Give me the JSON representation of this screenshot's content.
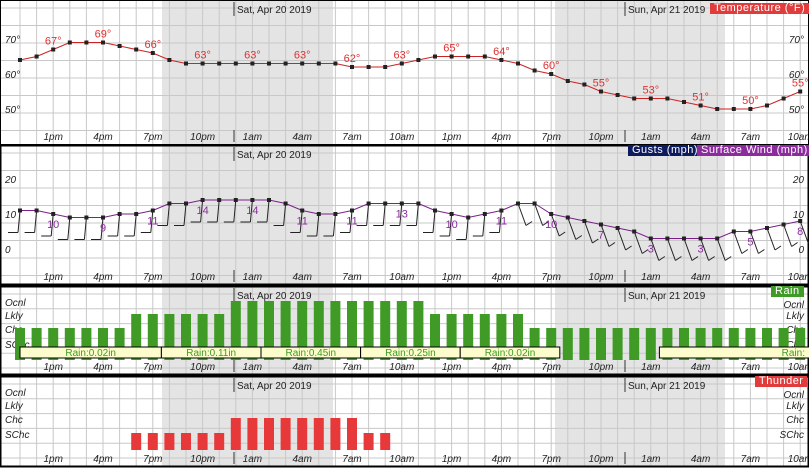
{
  "chart_data": [
    {
      "type": "line",
      "title": "Temperature (°F)",
      "hours": [
        "11am",
        "12pm",
        "1pm",
        "2pm",
        "3pm",
        "4pm",
        "5pm",
        "6pm",
        "7pm",
        "8pm",
        "9pm",
        "10pm",
        "11pm",
        "12am",
        "1am",
        "2am",
        "3am",
        "4am",
        "5am",
        "6am",
        "7am",
        "8am",
        "9am",
        "10am",
        "11am",
        "12pm",
        "1pm",
        "2pm",
        "3pm",
        "4pm",
        "5pm",
        "6pm",
        "7pm",
        "8pm",
        "9pm",
        "10pm",
        "11pm",
        "12am",
        "1am",
        "2am",
        "3am",
        "4am",
        "5am",
        "6am",
        "7am",
        "8am",
        "9am",
        "10am"
      ],
      "values": [
        64,
        65,
        67,
        69,
        69,
        69,
        68,
        67,
        66,
        64,
        63,
        63,
        63,
        63,
        63,
        63,
        63,
        63,
        63,
        63,
        62,
        62,
        62,
        63,
        64,
        65,
        65,
        65,
        65,
        64,
        63,
        61,
        60,
        58,
        57,
        55,
        54,
        53,
        53,
        53,
        52,
        51,
        50,
        50,
        50,
        51,
        53,
        55
      ],
      "yticks": [
        "50°",
        "60°",
        "70°"
      ],
      "ytick_values": [
        50,
        60,
        70
      ],
      "ylim": [
        40,
        78
      ],
      "color": "#cc2222"
    },
    {
      "type": "line",
      "title": "Surface Wind (mph)",
      "gust_label": "Gusts (mph)",
      "values": [
        11,
        11,
        10,
        9,
        9,
        9,
        10,
        10,
        11,
        13,
        13,
        14,
        14,
        14,
        14,
        14,
        13,
        11,
        10,
        10,
        11,
        13,
        13,
        13,
        13,
        11,
        10,
        9,
        10,
        11,
        13,
        13,
        10,
        9,
        8,
        7,
        6,
        5,
        3,
        3,
        3,
        3,
        3,
        5,
        5,
        6,
        7,
        8
      ],
      "yticks": [
        "0",
        "10",
        "20"
      ],
      "ytick_values": [
        0,
        10,
        20
      ],
      "ylim": [
        -8,
        28
      ],
      "color": "#7a1f8a"
    },
    {
      "type": "bar",
      "title": "Rain",
      "levels": [
        "SChc",
        "Chc",
        "Lkly",
        "Ocnl"
      ],
      "values": [
        2,
        2,
        2,
        2,
        2,
        2,
        2,
        3,
        3,
        3,
        3,
        3,
        3,
        4,
        4,
        4,
        4,
        4,
        4,
        4,
        4,
        4,
        4,
        4,
        4,
        3,
        3,
        3,
        3,
        3,
        3,
        2,
        2,
        2,
        2,
        2,
        2,
        2,
        2,
        2,
        2,
        2,
        2,
        2,
        2,
        2,
        2,
        2
      ],
      "amounts": [
        {
          "label": "Rain:0.02in",
          "start": 0,
          "end": 9
        },
        {
          "label": "Rain:0.11in",
          "start": 9,
          "end": 15
        },
        {
          "label": "Rain:0.45in",
          "start": 15,
          "end": 21
        },
        {
          "label": "Rain:0.25in",
          "start": 21,
          "end": 27
        },
        {
          "label": "Rain:0.02in",
          "start": 27,
          "end": 33
        },
        {
          "label": "Rain:",
          "start": 39,
          "end": 48
        }
      ],
      "color": "#3f9a26"
    },
    {
      "type": "bar",
      "title": "Thunder",
      "levels": [
        "SChc",
        "Chc",
        "Lkly",
        "Ocnl"
      ],
      "values": [
        0,
        0,
        0,
        0,
        0,
        0,
        0,
        1,
        1,
        1,
        1,
        1,
        1,
        2,
        2,
        2,
        2,
        2,
        2,
        2,
        2,
        1,
        1,
        0,
        0,
        0,
        0,
        0,
        0,
        0,
        0,
        0,
        0,
        0,
        0,
        0,
        0,
        0,
        0,
        0,
        0,
        0,
        0,
        0,
        0,
        0,
        0,
        0
      ],
      "color": "#e8393a"
    }
  ],
  "dates": [
    "Sat, Apr 20 2019",
    "Sun, Apr 21 2019"
  ],
  "xtick_labels": [
    "1pm",
    "4pm",
    "7pm",
    "10pm",
    "1am",
    "4am",
    "7am",
    "10am",
    "1pm",
    "4pm",
    "7pm",
    "10pm",
    "1am",
    "4am",
    "7am",
    "10am"
  ],
  "legend": {
    "temperature": "Temperature (°F)",
    "gusts": "Gusts (mph)",
    "wind": "Surface Wind (mph)",
    "rain": "Rain",
    "thunder": "Thunder"
  }
}
